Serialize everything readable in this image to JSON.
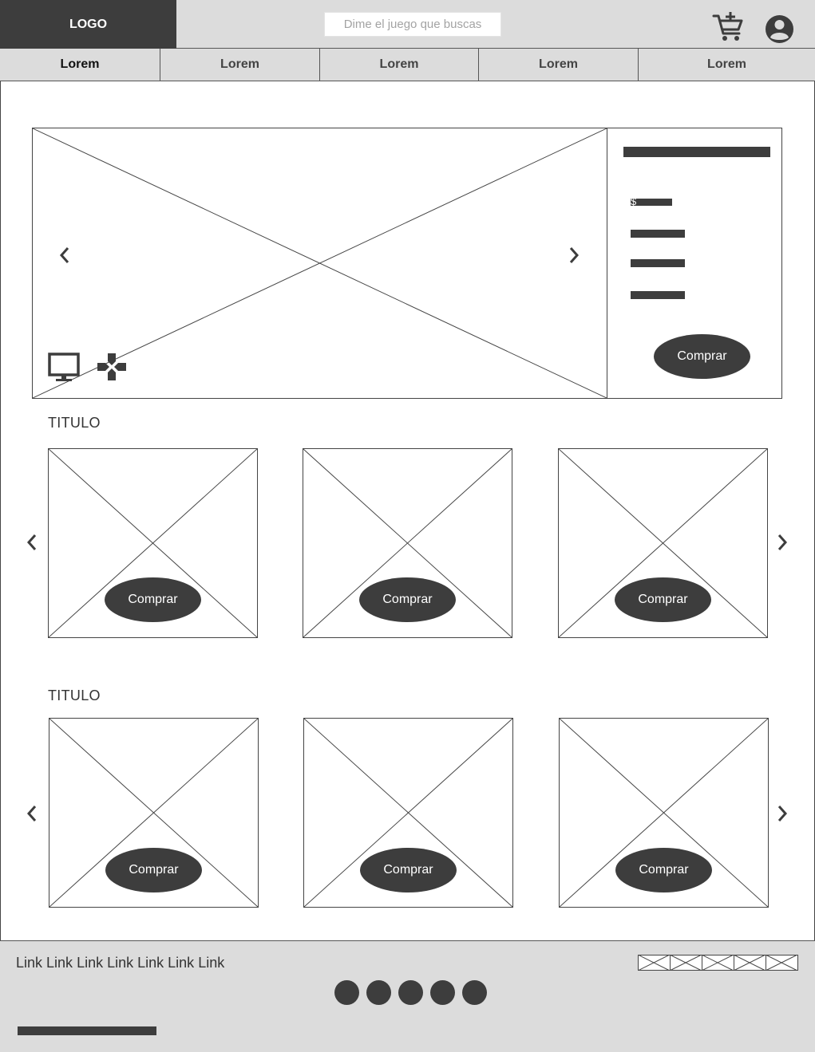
{
  "header": {
    "logo": "LOGO",
    "search_placeholder": "Dime el juego que buscas",
    "cart_icon": "cart-add-icon",
    "user_icon": "user-account-icon"
  },
  "nav": {
    "tabs": [
      {
        "label": "Lorem",
        "active": true
      },
      {
        "label": "Lorem",
        "active": false
      },
      {
        "label": "Lorem",
        "active": false
      },
      {
        "label": "Lorem",
        "active": false
      },
      {
        "label": "Lorem",
        "active": false
      }
    ]
  },
  "hero": {
    "price_symbol": "$",
    "buy_label": "Comprar",
    "platform_icons": [
      "monitor-icon",
      "gamepad-icon"
    ]
  },
  "sections": [
    {
      "title": "TITULO",
      "items": [
        {
          "buy_label": "Comprar"
        },
        {
          "buy_label": "Comprar"
        },
        {
          "buy_label": "Comprar"
        }
      ]
    },
    {
      "title": "TITULO",
      "items": [
        {
          "buy_label": "Comprar"
        },
        {
          "buy_label": "Comprar"
        },
        {
          "buy_label": "Comprar"
        }
      ]
    }
  ],
  "footer": {
    "links": [
      "Link",
      "Link",
      "Link",
      "Link",
      "Link",
      "Link",
      "Link"
    ]
  },
  "colors": {
    "dark": "#3d3d3d",
    "header_bg": "#dcdcdc",
    "border": "#444444"
  }
}
